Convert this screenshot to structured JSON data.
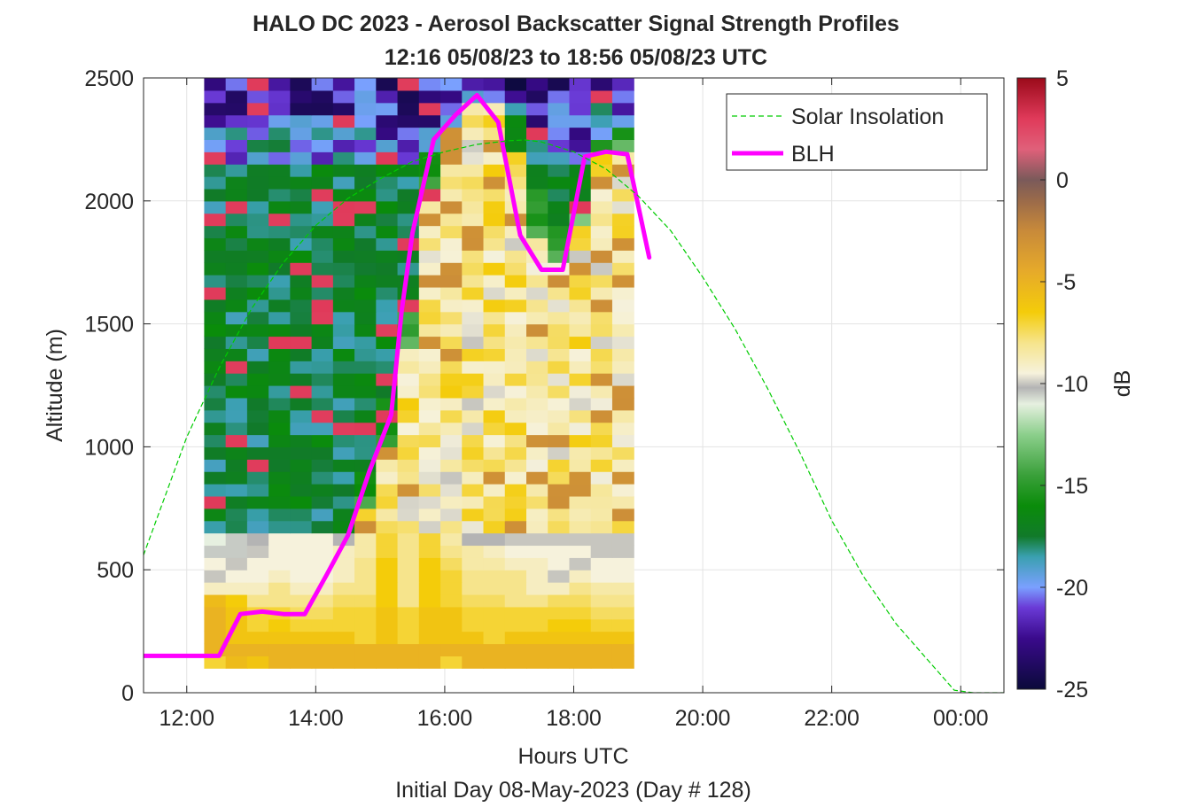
{
  "chart_data": {
    "type": "heatmap",
    "title": "HALO DC 2023 - Aerosol Backscatter Signal Strength Profiles",
    "subtitle": "12:16 05/08/23 to 18:56 05/08/23  UTC",
    "xlabel": "Hours UTC",
    "xlabel2": "Initial Day 08-May-2023 (Day # 128)",
    "ylabel": "Altitude (m)",
    "xlim": [
      11.33,
      24.67
    ],
    "ylim": [
      0,
      2500
    ],
    "grid": true,
    "x_ticks": [
      12,
      14,
      16,
      18,
      20,
      22,
      24
    ],
    "x_tick_labels": [
      "12:00",
      "14:00",
      "16:00",
      "18:00",
      "20:00",
      "22:00",
      "00:00"
    ],
    "y_ticks": [
      0,
      500,
      1000,
      1500,
      2000,
      2500
    ],
    "y_tick_labels": [
      "0",
      "500",
      "1000",
      "1500",
      "2000",
      "2500"
    ],
    "legend": {
      "placement": "top-right",
      "entries": [
        "Solar Insolation",
        "BLH"
      ]
    },
    "colorbar": {
      "label": "dB",
      "limits": [
        -25,
        5
      ],
      "ticks": [
        5,
        0,
        -5,
        -10,
        -15,
        -20,
        -25
      ],
      "tick_labels": [
        "5",
        "0",
        "-5",
        "-10",
        "-15",
        "-20",
        "-25"
      ],
      "colormap": [
        [
          -25,
          "#0a0a3a"
        ],
        [
          -22.5,
          "#3a0a8c"
        ],
        [
          -21,
          "#6a3ad6"
        ],
        [
          -20,
          "#7aa0ff"
        ],
        [
          -18.5,
          "#3aa0b0"
        ],
        [
          -17.5,
          "#117a2a"
        ],
        [
          -16,
          "#0a8c0a"
        ],
        [
          -14.5,
          "#3aa03a"
        ],
        [
          -12.5,
          "#8ccf8c"
        ],
        [
          -11,
          "#e6f0e0"
        ],
        [
          -10.2,
          "#b4b4b4"
        ],
        [
          -9.5,
          "#f6f2dc"
        ],
        [
          -8,
          "#f6e48c"
        ],
        [
          -6.5,
          "#f4cc0a"
        ],
        [
          -4.5,
          "#e6aa2a"
        ],
        [
          -2.5,
          "#c88a3a"
        ],
        [
          -1,
          "#9a6a4a"
        ],
        [
          0,
          "#7a5a5a"
        ],
        [
          1.5,
          "#e0607a"
        ],
        [
          3,
          "#e03a5a"
        ],
        [
          5,
          "#9a0a1a"
        ]
      ]
    },
    "heatmap": {
      "x_start": 12.27,
      "x_step": 0.333,
      "y_start": 100,
      "y_step": 50,
      "values_db": [
        [
          -7,
          -5.5,
          -6,
          -5,
          -5,
          -5,
          -5,
          -5,
          -5,
          -5,
          -5,
          -7,
          -5,
          -5,
          -5,
          -5,
          -5,
          -5,
          -5,
          -5
        ],
        [
          -5,
          -5,
          -5,
          -5,
          -5,
          -5,
          -5,
          -5,
          -5,
          -5,
          -5,
          -5,
          -5,
          -5,
          -5,
          -5,
          -5,
          -5,
          -5,
          -5
        ],
        [
          -5,
          -6,
          -6,
          -6,
          -6,
          -6,
          -6,
          -7,
          -6,
          -7,
          -6,
          -6,
          -6,
          -7,
          -6,
          -6,
          -6,
          -6,
          -6,
          -6
        ],
        [
          -5,
          -6,
          -7,
          -6.5,
          -7,
          -7,
          -7,
          -7,
          -6,
          -7,
          -6,
          -6,
          -7,
          -7,
          -7,
          -7,
          -6.5,
          -6.5,
          -7,
          -7
        ],
        [
          -5,
          -6,
          -7,
          -7,
          -7.5,
          -7.5,
          -7,
          -7,
          -6,
          -7,
          -6,
          -6,
          -7,
          -7,
          -7,
          -7,
          -7,
          -7,
          -7.5,
          -7.5
        ],
        [
          -5.5,
          -6.5,
          -8,
          -8,
          -8,
          -8,
          -7.5,
          -7.5,
          -6.5,
          -8,
          -6.5,
          -7,
          -7.5,
          -7.5,
          -8,
          -8,
          -7.5,
          -7.5,
          -8,
          -8
        ],
        [
          -9,
          -9,
          -9,
          -8,
          -9,
          -9,
          -8,
          -8,
          -6.5,
          -8,
          -6.5,
          -7,
          -8,
          -8,
          -8,
          -9,
          -9,
          -8,
          -8.5,
          -8.5
        ],
        [
          -10,
          -9.5,
          -9.5,
          -9,
          -9.5,
          -9.5,
          -9,
          -8,
          -6.5,
          -8,
          -6.5,
          -7,
          -8,
          -8,
          -8,
          -9,
          -10,
          -9,
          -9.5,
          -9.5
        ],
        [
          -9.5,
          -10,
          -9.5,
          -9.5,
          -9.5,
          -9.5,
          -9,
          -8,
          -6.5,
          -8,
          -6.5,
          -7.5,
          -8.5,
          -8.5,
          -9,
          -9,
          -9.5,
          -10,
          -9.5,
          -9.5
        ],
        [
          -10.5,
          -10.5,
          -10,
          -9.5,
          -9.5,
          -9.5,
          -9,
          -8.5,
          -7,
          -8,
          -7,
          -8,
          -8.5,
          -9,
          -9.5,
          -9.5,
          -9.5,
          -9.5,
          -10,
          -10
        ],
        [
          -11,
          -10.5,
          -10.2,
          -9.5,
          -9.5,
          -9.5,
          -10.2,
          -8.5,
          -7,
          -8,
          -7,
          -8.5,
          -10.2,
          -10.2,
          -10,
          -10,
          -10,
          -10,
          -10,
          -10
        ]
      ]
    },
    "series": [
      {
        "name": "BLH",
        "color": "#ff00ff",
        "x": [
          11.33,
          12.5,
          12.83,
          13.17,
          13.5,
          13.83,
          14.17,
          14.5,
          14.83,
          15.17,
          15.33,
          15.5,
          15.83,
          16.17,
          16.5,
          16.83,
          17.17,
          17.5,
          17.83,
          18.17,
          18.5,
          18.83,
          19.17
        ],
        "y": [
          150,
          150,
          320,
          330,
          320,
          320,
          480,
          640,
          900,
          1130,
          1550,
          1870,
          2250,
          2350,
          2430,
          2320,
          1860,
          1720,
          1720,
          2180,
          2200,
          2190,
          1770
        ]
      },
      {
        "name": "Solar Insolation",
        "color": "#00cc00",
        "x": [
          11.33,
          12,
          12.5,
          13,
          13.5,
          14,
          14.5,
          15,
          15.5,
          16,
          16.5,
          17,
          17.25,
          17.5,
          18,
          18.5,
          19,
          19.5,
          20,
          20.5,
          21,
          21.5,
          22,
          22.5,
          23,
          23.5,
          23.9,
          24.2,
          24.67
        ],
        "y": [
          560,
          1040,
          1320,
          1560,
          1750,
          1900,
          2010,
          2090,
          2160,
          2200,
          2230,
          2245,
          2248,
          2240,
          2200,
          2130,
          2020,
          1880,
          1690,
          1480,
          1240,
          980,
          700,
          470,
          280,
          130,
          10,
          0,
          0
        ]
      }
    ]
  }
}
